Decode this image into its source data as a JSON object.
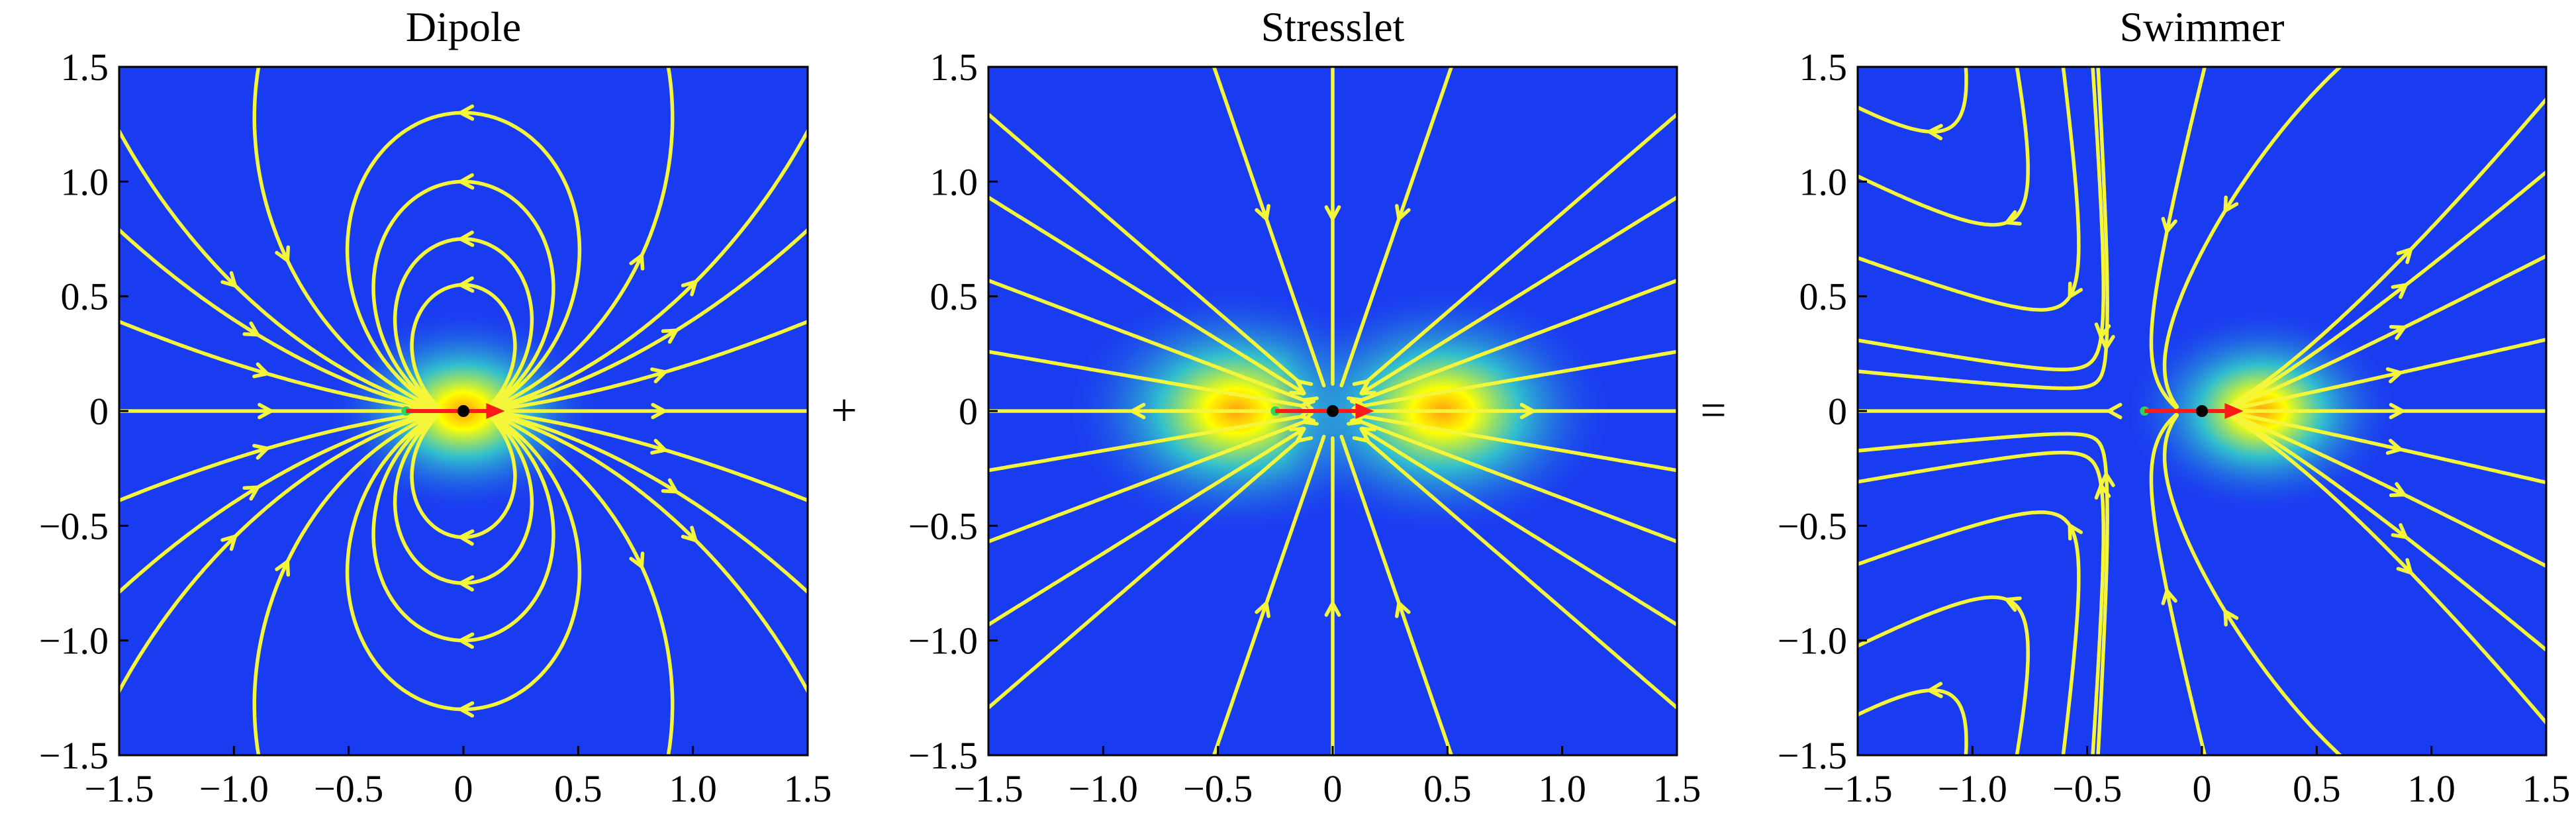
{
  "figure": {
    "operators": [
      "+",
      "="
    ],
    "colors": {
      "field_low": "#1a3cf0",
      "field_mid": "#35d6c8",
      "field_high": "#ffff00",
      "field_peak": "#ff9f10",
      "streamline": "#f5f53a",
      "swimmer_center": "#000000",
      "orientation_arrow": "#ff1a1a",
      "tail_marker": "#2fd35b"
    },
    "panels": [
      {
        "id": "dipole",
        "title": "Dipole",
        "x_range": [
          -1.5,
          1.5
        ],
        "y_range": [
          -1.5,
          1.5
        ],
        "x_ticks": [
          -1.5,
          -1.0,
          -0.5,
          0,
          0.5,
          1.0,
          1.5
        ],
        "x_tick_labels": [
          "−1.5",
          "−1.0",
          "−0.5",
          "0",
          "0.5",
          "1.0",
          "1.5"
        ],
        "y_ticks": [
          1.5,
          1.0,
          0.5,
          0,
          -0.5,
          -1.0,
          -1.5
        ],
        "y_tick_labels": [
          "1.5",
          "1.0",
          "0.5",
          "0",
          "−0.5",
          "−1.0",
          "−1.5"
        ],
        "hotspots": [
          [
            0.0,
            0.0
          ]
        ],
        "swimmer": {
          "center": [
            0.0,
            0.0
          ],
          "tail": [
            -0.25,
            0.0
          ],
          "head": [
            0.18,
            0.0
          ]
        },
        "flow": "dipole"
      },
      {
        "id": "stresslet",
        "title": "Stresslet",
        "x_range": [
          -1.5,
          1.5
        ],
        "y_range": [
          -1.5,
          1.5
        ],
        "x_ticks": [
          -1.5,
          -1.0,
          -0.5,
          0,
          0.5,
          1.0,
          1.5
        ],
        "x_tick_labels": [
          "−1.5",
          "−1.0",
          "−0.5",
          "0",
          "0.5",
          "1.0",
          "1.5"
        ],
        "y_ticks": [
          1.5,
          1.0,
          0.5,
          0,
          -0.5,
          -1.0,
          -1.5
        ],
        "y_tick_labels": [
          "1.5",
          "1.0",
          "0.5",
          "0",
          "−0.5",
          "−1.0",
          "−1.5"
        ],
        "hotspots": [
          [
            -0.42,
            0.0
          ],
          [
            0.48,
            0.0
          ]
        ],
        "swimmer": {
          "center": [
            0.0,
            0.0
          ],
          "tail": [
            -0.25,
            0.0
          ],
          "head": [
            0.18,
            0.0
          ]
        },
        "flow": "stresslet"
      },
      {
        "id": "swimmer",
        "title": "Swimmer",
        "x_range": [
          -1.5,
          1.5
        ],
        "y_range": [
          -1.5,
          1.5
        ],
        "x_ticks": [
          -1.5,
          -1.0,
          -0.5,
          0,
          0.5,
          1.0,
          1.5
        ],
        "x_tick_labels": [
          "−1.5",
          "−1.0",
          "−0.5",
          "0",
          "0.5",
          "1.0",
          "1.5"
        ],
        "y_ticks": [
          1.5,
          1.0,
          0.5,
          0,
          -0.5,
          -1.0,
          -1.5
        ],
        "y_tick_labels": [
          "1.5",
          "1.0",
          "0.5",
          "0",
          "−0.5",
          "−1.0",
          "−1.5"
        ],
        "hotspots": [
          [
            0.26,
            0.0
          ]
        ],
        "swimmer": {
          "center": [
            0.0,
            0.0
          ],
          "tail": [
            -0.25,
            0.0
          ],
          "head": [
            0.18,
            0.0
          ]
        },
        "flow": "swimmer"
      }
    ]
  }
}
